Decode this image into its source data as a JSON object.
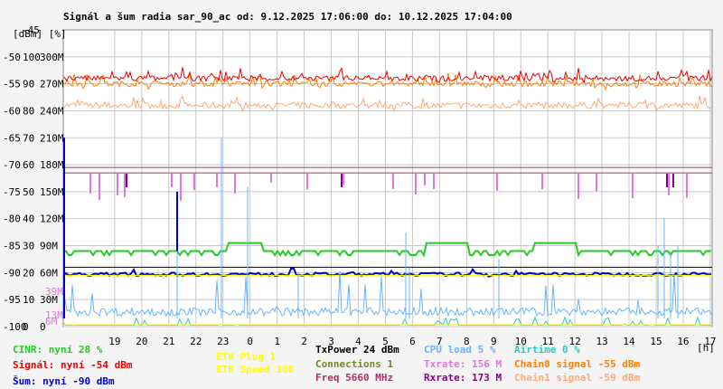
{
  "title": "Signál a šum radia sar_90_ac od: 9.12.2025 17:06:00 do: 10.12.2025 17:04:00",
  "corner_top": "-45",
  "unit_label": "[dBm] [%]",
  "x_unit": "[h]",
  "colors": {
    "background": "#f4f4f4",
    "plot_bg": "#ffffff",
    "grid": "#c8c8c8",
    "signal": "#ee0000",
    "chain0": "#ff8000",
    "chain1": "#ffaa77",
    "noise": "#0000cc",
    "cinr": "#22cc22",
    "cpu": "#66b3ff",
    "airtime": "#22cccc",
    "txrate": "#dd77dd",
    "rxrate": "#880088",
    "freq": "#aa3366",
    "eth_plug": "#ffff00",
    "eth_speed": "#ffff00",
    "connections": "#778822",
    "txpower": "#000000"
  },
  "chart_data": {
    "type": "line",
    "title": "Signál a šum radia sar_90_ac od: 9.12.2025 17:06:00 do: 10.12.2025 17:04:00",
    "x_ticks": [
      "19",
      "20",
      "21",
      "22",
      "23",
      "0",
      "1",
      "2",
      "3",
      "4",
      "5",
      "6",
      "7",
      "8",
      "9",
      "10",
      "11",
      "12",
      "13",
      "14",
      "15",
      "16",
      "17"
    ],
    "x_tick_hours": [
      19,
      20,
      21,
      22,
      23,
      24,
      25,
      26,
      27,
      28,
      29,
      30,
      31,
      32,
      33,
      34,
      35,
      36,
      37,
      38,
      39,
      40,
      41
    ],
    "x_range_hours": [
      17.1,
      41.07
    ],
    "y_left_dbm": {
      "range": [
        -100,
        -45
      ],
      "ticks": [
        "-45",
        "-50",
        "-55",
        "-60",
        "-65",
        "-70",
        "-75",
        "-80",
        "-85",
        "-90",
        "-95",
        "-100"
      ]
    },
    "y_percent_ticks": [
      "100",
      "90",
      "80",
      "70",
      "60",
      "50",
      "40",
      "30",
      "20",
      "10",
      "0"
    ],
    "y_rate_ticks": [
      "300M",
      "270M",
      "240M",
      "210M",
      "180M",
      "150M",
      "120M",
      "90M",
      "60M",
      "30M",
      "0"
    ],
    "y_extra_ticks": [
      "39M",
      "13M",
      "6M"
    ],
    "series": [
      {
        "name": "Signál",
        "key": "signal",
        "base_dbm": -54,
        "jitter": 1.5,
        "current": "-54 dBm"
      },
      {
        "name": "Chain0 signal",
        "key": "chain0",
        "base_dbm": -55,
        "jitter": 1.5,
        "current": "-55 dBm"
      },
      {
        "name": "Chain1 signal",
        "key": "chain1",
        "base_dbm": -59,
        "jitter": 1.5,
        "current": "-59 dBm"
      },
      {
        "name": "Šum",
        "key": "noise",
        "base_dbm": -90,
        "current": "-90 dBm"
      },
      {
        "name": "CINR",
        "key": "cinr",
        "base_pct": 28,
        "current": "28 %"
      },
      {
        "name": "CPU load",
        "key": "cpu",
        "base_pct": 5,
        "current": "5 %"
      },
      {
        "name": "Airtime",
        "key": "airtime",
        "base_pct": 0,
        "current": "0 %"
      },
      {
        "name": "Txrate",
        "key": "txrate",
        "base_rate_m": 156,
        "current": "156 M"
      },
      {
        "name": "Rxrate",
        "key": "rxrate",
        "base_rate_m": 173,
        "current": "173 M"
      },
      {
        "name": "Freq",
        "key": "freq",
        "value": "5660 MHz"
      },
      {
        "name": "ETH Speed",
        "key": "eth_speed",
        "value": "100"
      },
      {
        "name": "ETH Plug",
        "key": "eth_plug",
        "value": "1"
      },
      {
        "name": "Connections",
        "key": "connections",
        "value": "1"
      },
      {
        "name": "TxPower",
        "key": "txpower",
        "value": "24 dBm"
      }
    ]
  },
  "legend": {
    "cinr": "CINR: nyní 28 %",
    "signal": "Signál: nyní -54 dBm",
    "noise": "Šum: nyní -90 dBm",
    "eth_plug": "ETH Plug 1",
    "eth_speed": "ETH Speed 100",
    "txpower": "TxPower 24 dBm",
    "connections": "Connections 1",
    "freq": "Freq 5660 MHz",
    "cpu": "CPU load 5 %",
    "txrate": "Txrate: 156 M",
    "rxrate": "Rxrate: 173 M",
    "airtime": "Airtime 0 %",
    "chain0": "Chain0 signal -55 dBm",
    "chain1": "Chain1 signal -59 dBm"
  }
}
